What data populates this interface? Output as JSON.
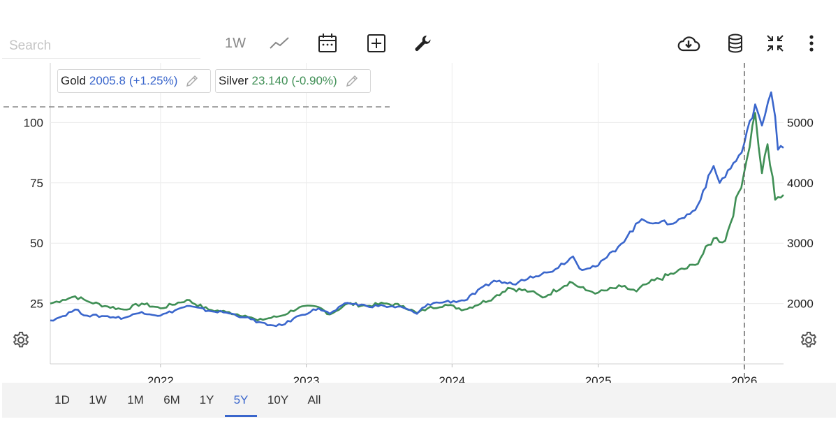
{
  "toolbar": {
    "search_placeholder": "Search",
    "interval_label": "1W",
    "icons": [
      "line-chart-icon",
      "calendar-icon",
      "add-icon",
      "wrench-icon",
      "cloud-download-icon",
      "database-icon",
      "collapse-icon",
      "more-vertical-icon"
    ]
  },
  "legend": {
    "gold": {
      "name": "Gold",
      "value": "2005.8",
      "change": "(+1.25%)",
      "color": "#3a66cc"
    },
    "silver": {
      "name": "Silver",
      "value": "23.140",
      "change": "(-0.90%)",
      "color": "#3f8f55"
    }
  },
  "range_buttons": [
    {
      "label": "1D",
      "active": false
    },
    {
      "label": "1W",
      "active": false
    },
    {
      "label": "1M",
      "active": false
    },
    {
      "label": "6M",
      "active": false
    },
    {
      "label": "1Y",
      "active": false
    },
    {
      "label": "5Y",
      "active": true
    },
    {
      "label": "10Y",
      "active": false
    },
    {
      "label": "All",
      "active": false
    }
  ],
  "chart_data": {
    "type": "line",
    "x_tick_labels": [
      "2022",
      "2023",
      "2024",
      "2025",
      "2026"
    ],
    "left_axis": {
      "ticks": [
        25,
        50,
        75,
        100
      ],
      "range": [
        0,
        115
      ],
      "series": "Silver"
    },
    "right_axis": {
      "ticks": [
        2000,
        3000,
        4000,
        5000
      ],
      "range": [
        1000,
        6000
      ],
      "series": "Gold"
    },
    "grid": true,
    "crosshair_date": "2026-01-02",
    "x_range": [
      "2021-03-31",
      "2026-04-10"
    ],
    "series": [
      {
        "name": "Gold",
        "axis": "right",
        "color": "#3a66cc",
        "points": [
          [
            "2021-03-31",
            1720
          ],
          [
            "2021-05-01",
            1790
          ],
          [
            "2021-06-01",
            1900
          ],
          [
            "2021-07-01",
            1800
          ],
          [
            "2021-08-15",
            1790
          ],
          [
            "2021-10-01",
            1760
          ],
          [
            "2021-11-15",
            1860
          ],
          [
            "2022-01-01",
            1800
          ],
          [
            "2022-03-08",
            1960
          ],
          [
            "2022-05-01",
            1880
          ],
          [
            "2022-06-15",
            1850
          ],
          [
            "2022-08-01",
            1770
          ],
          [
            "2022-09-26",
            1640
          ],
          [
            "2022-11-01",
            1640
          ],
          [
            "2022-12-15",
            1800
          ],
          [
            "2023-02-01",
            1920
          ],
          [
            "2023-03-01",
            1830
          ],
          [
            "2023-04-15",
            2010
          ],
          [
            "2023-06-01",
            1960
          ],
          [
            "2023-07-15",
            1960
          ],
          [
            "2023-09-01",
            1930
          ],
          [
            "2023-10-05",
            1830
          ],
          [
            "2023-11-01",
            1990
          ],
          [
            "2023-12-15",
            2030
          ],
          [
            "2024-02-01",
            2050
          ],
          [
            "2024-04-15",
            2380
          ],
          [
            "2024-06-01",
            2320
          ],
          [
            "2024-07-15",
            2450
          ],
          [
            "2024-09-01",
            2520
          ],
          [
            "2024-10-30",
            2780
          ],
          [
            "2024-11-15",
            2580
          ],
          [
            "2025-01-01",
            2630
          ],
          [
            "2025-02-20",
            2940
          ],
          [
            "2025-04-20",
            3400
          ],
          [
            "2025-06-01",
            3330
          ],
          [
            "2025-07-15",
            3350
          ],
          [
            "2025-09-01",
            3550
          ],
          [
            "2025-10-17",
            4280
          ],
          [
            "2025-11-01",
            4000
          ],
          [
            "2025-12-26",
            4500
          ],
          [
            "2026-01-29",
            5300
          ],
          [
            "2026-02-15",
            4950
          ],
          [
            "2026-03-10",
            5500
          ],
          [
            "2026-03-20",
            5100
          ],
          [
            "2026-03-27",
            4550
          ],
          [
            "2026-04-10",
            4580
          ]
        ]
      },
      {
        "name": "Silver",
        "axis": "left",
        "color": "#3f8f55",
        "points": [
          [
            "2021-03-31",
            25
          ],
          [
            "2021-05-01",
            26.5
          ],
          [
            "2021-06-01",
            28
          ],
          [
            "2021-07-01",
            26
          ],
          [
            "2021-08-15",
            24
          ],
          [
            "2021-10-01",
            22.5
          ],
          [
            "2021-11-15",
            25
          ],
          [
            "2022-01-01",
            23
          ],
          [
            "2022-03-08",
            26.5
          ],
          [
            "2022-05-01",
            22.5
          ],
          [
            "2022-06-15",
            21.5
          ],
          [
            "2022-08-01",
            20
          ],
          [
            "2022-09-01",
            18
          ],
          [
            "2022-11-01",
            20
          ],
          [
            "2022-12-15",
            23.5
          ],
          [
            "2023-02-01",
            23.5
          ],
          [
            "2023-03-01",
            20.5
          ],
          [
            "2023-04-15",
            25
          ],
          [
            "2023-06-01",
            24
          ],
          [
            "2023-07-15",
            25
          ],
          [
            "2023-09-01",
            24
          ],
          [
            "2023-10-05",
            21
          ],
          [
            "2023-11-01",
            23
          ],
          [
            "2023-12-15",
            24.5
          ],
          [
            "2024-02-01",
            22.5
          ],
          [
            "2024-04-15",
            27.5
          ],
          [
            "2024-05-20",
            31.5
          ],
          [
            "2024-07-15",
            30
          ],
          [
            "2024-08-15",
            27.5
          ],
          [
            "2024-10-22",
            34
          ],
          [
            "2024-12-01",
            30.5
          ],
          [
            "2025-01-01",
            29.5
          ],
          [
            "2025-03-01",
            32
          ],
          [
            "2025-04-07",
            30
          ],
          [
            "2025-05-01",
            33
          ],
          [
            "2025-07-15",
            38
          ],
          [
            "2025-09-01",
            41
          ],
          [
            "2025-10-17",
            52
          ],
          [
            "2025-11-15",
            51
          ],
          [
            "2026-01-01",
            79
          ],
          [
            "2026-01-29",
            104
          ],
          [
            "2026-02-15",
            79
          ],
          [
            "2026-03-01",
            91
          ],
          [
            "2026-03-20",
            68
          ],
          [
            "2026-04-10",
            70
          ]
        ]
      }
    ]
  }
}
